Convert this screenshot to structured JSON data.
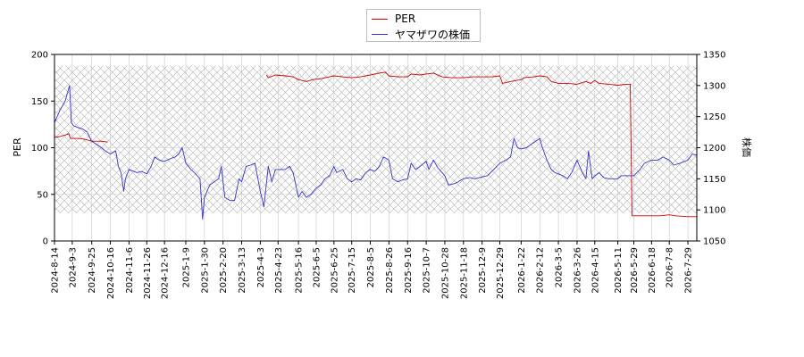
{
  "chart_data": {
    "type": "line",
    "title": "",
    "xlabel": "",
    "y_left_label": "PER",
    "y_right_label": "株価",
    "y_left_range": [
      0,
      200
    ],
    "y_right_range": [
      1050,
      1350
    ],
    "y_left_ticks": [
      0,
      50,
      100,
      150,
      200
    ],
    "y_right_ticks": [
      1050,
      1100,
      1150,
      1200,
      1250,
      1300,
      1350
    ],
    "x_range": [
      "2024-08-14",
      "2026-08-08"
    ],
    "x_ticks": [
      "2024-8-14",
      "2024-9-3",
      "2024-9-25",
      "2024-10-16",
      "2024-11-6",
      "2024-11-26",
      "2024-12-16",
      "2025-1-9",
      "2025-1-30",
      "2025-2-20",
      "2025-3-13",
      "2025-4-3",
      "2025-4-23",
      "2025-5-16",
      "2025-6-5",
      "2025-6-25",
      "2025-7-15",
      "2025-8-5",
      "2025-8-26",
      "2025-9-16",
      "2025-10-7",
      "2025-10-28",
      "2025-11-18",
      "2025-12-9",
      "2025-12-29",
      "2026-1-22",
      "2026-2-12",
      "2026-3-5",
      "2026-3-26",
      "2026-4-15",
      "2026-5-11",
      "2026-5-29",
      "2026-6-18",
      "2026-7-8",
      "2026-7-29"
    ],
    "grid": true,
    "hatched_band_left_axis": [
      30,
      188
    ],
    "legend_placement": "top-center",
    "series": [
      {
        "name": "PER",
        "axis": "left",
        "color": "#cc0000",
        "points": [
          [
            "2024-08-14",
            111
          ],
          [
            "2024-08-20",
            112
          ],
          [
            "2024-08-27",
            114
          ],
          [
            "2024-08-30",
            115
          ],
          [
            "2024-09-01",
            110
          ],
          [
            "2024-09-10",
            110
          ],
          [
            "2024-09-17",
            109
          ],
          [
            "2024-09-25",
            107
          ],
          [
            "2024-10-05",
            107
          ],
          [
            "2024-10-13",
            106
          ],
          null,
          [
            "2025-04-10",
            178
          ],
          [
            "2025-04-12",
            175
          ],
          [
            "2025-04-20",
            178
          ],
          [
            "2025-05-01",
            177
          ],
          [
            "2025-05-10",
            176
          ],
          [
            "2025-05-16",
            173
          ],
          [
            "2025-05-25",
            171
          ],
          [
            "2025-06-01",
            173
          ],
          [
            "2025-06-10",
            174
          ],
          [
            "2025-06-20",
            176
          ],
          [
            "2025-06-25",
            177
          ],
          [
            "2025-07-05",
            176
          ],
          [
            "2025-07-15",
            175
          ],
          [
            "2025-07-25",
            176
          ],
          [
            "2025-08-05",
            178
          ],
          [
            "2025-08-15",
            180
          ],
          [
            "2025-08-22",
            181
          ],
          [
            "2025-08-26",
            177
          ],
          [
            "2025-09-05",
            176
          ],
          [
            "2025-09-16",
            176
          ],
          [
            "2025-09-20",
            179
          ],
          [
            "2025-09-30",
            178
          ],
          [
            "2025-10-07",
            179
          ],
          [
            "2025-10-15",
            180
          ],
          [
            "2025-10-25",
            176
          ],
          [
            "2025-11-05",
            175
          ],
          [
            "2025-11-18",
            175
          ],
          [
            "2025-11-28",
            176
          ],
          [
            "2025-12-09",
            176
          ],
          [
            "2025-12-20",
            176
          ],
          [
            "2025-12-29",
            177
          ],
          [
            "2026-01-01",
            169
          ],
          [
            "2026-01-10",
            171
          ],
          [
            "2026-01-22",
            173
          ],
          [
            "2026-01-25",
            175
          ],
          [
            "2026-02-05",
            176
          ],
          [
            "2026-02-12",
            177
          ],
          [
            "2026-02-20",
            176
          ],
          [
            "2026-02-25",
            171
          ],
          [
            "2026-03-05",
            169
          ],
          [
            "2026-03-15",
            169
          ],
          [
            "2026-03-26",
            168
          ],
          [
            "2026-04-05",
            171
          ],
          [
            "2026-04-10",
            169
          ],
          [
            "2026-04-15",
            172
          ],
          [
            "2026-04-20",
            169
          ],
          [
            "2026-05-01",
            168
          ],
          [
            "2026-05-11",
            167
          ],
          [
            "2026-05-20",
            168
          ],
          [
            "2026-05-25",
            168
          ],
          [
            "2026-05-27",
            27
          ],
          [
            "2026-06-05",
            27
          ],
          [
            "2026-06-18",
            27
          ],
          [
            "2026-06-28",
            27
          ],
          [
            "2026-07-08",
            28
          ],
          [
            "2026-07-15",
            27
          ],
          [
            "2026-07-29",
            26
          ],
          [
            "2026-08-08",
            26
          ]
        ]
      },
      {
        "name": "ヤマザワの株価",
        "axis": "right",
        "color": "#3333cc",
        "points": [
          [
            "2024-08-14",
            1240
          ],
          [
            "2024-08-20",
            1260
          ],
          [
            "2024-08-26",
            1275
          ],
          [
            "2024-08-31",
            1300
          ],
          [
            "2024-09-02",
            1240
          ],
          [
            "2024-09-05",
            1235
          ],
          [
            "2024-09-10",
            1232
          ],
          [
            "2024-09-15",
            1230
          ],
          [
            "2024-09-20",
            1225
          ],
          [
            "2024-09-25",
            1210
          ],
          [
            "2024-10-01",
            1205
          ],
          [
            "2024-10-06",
            1200
          ],
          [
            "2024-10-10",
            1195
          ],
          [
            "2024-10-16",
            1190
          ],
          [
            "2024-10-22",
            1195
          ],
          [
            "2024-10-25",
            1170
          ],
          [
            "2024-10-28",
            1160
          ],
          [
            "2024-10-31",
            1130
          ],
          [
            "2024-11-02",
            1150
          ],
          [
            "2024-11-06",
            1165
          ],
          [
            "2024-11-15",
            1160
          ],
          [
            "2024-11-20",
            1162
          ],
          [
            "2024-11-26",
            1158
          ],
          [
            "2024-12-01",
            1170
          ],
          [
            "2024-12-05",
            1185
          ],
          [
            "2024-12-10",
            1180
          ],
          [
            "2024-12-16",
            1178
          ],
          [
            "2024-12-22",
            1182
          ],
          [
            "2024-12-28",
            1185
          ],
          [
            "2025-01-01",
            1190
          ],
          [
            "2025-01-05",
            1200
          ],
          [
            "2025-01-09",
            1175
          ],
          [
            "2025-01-15",
            1165
          ],
          [
            "2025-01-20",
            1158
          ],
          [
            "2025-01-25",
            1150
          ],
          [
            "2025-01-28",
            1085
          ],
          [
            "2025-01-30",
            1120
          ],
          [
            "2025-02-05",
            1140
          ],
          [
            "2025-02-10",
            1145
          ],
          [
            "2025-02-15",
            1150
          ],
          [
            "2025-02-18",
            1170
          ],
          [
            "2025-02-22",
            1120
          ],
          [
            "2025-02-28",
            1115
          ],
          [
            "2025-03-05",
            1115
          ],
          [
            "2025-03-10",
            1150
          ],
          [
            "2025-03-13",
            1145
          ],
          [
            "2025-03-18",
            1170
          ],
          [
            "2025-03-23",
            1172
          ],
          [
            "2025-03-28",
            1175
          ],
          [
            "2025-04-03",
            1130
          ],
          [
            "2025-04-07",
            1105
          ],
          [
            "2025-04-12",
            1170
          ],
          [
            "2025-04-16",
            1145
          ],
          [
            "2025-04-20",
            1165
          ],
          [
            "2025-04-25",
            1165
          ],
          [
            "2025-05-01",
            1165
          ],
          [
            "2025-05-06",
            1170
          ],
          [
            "2025-05-10",
            1160
          ],
          [
            "2025-05-16",
            1120
          ],
          [
            "2025-05-20",
            1130
          ],
          [
            "2025-05-25",
            1120
          ],
          [
            "2025-05-30",
            1125
          ],
          [
            "2025-06-05",
            1135
          ],
          [
            "2025-06-10",
            1140
          ],
          [
            "2025-06-15",
            1150
          ],
          [
            "2025-06-20",
            1155
          ],
          [
            "2025-06-25",
            1170
          ],
          [
            "2025-06-28",
            1160
          ],
          [
            "2025-07-05",
            1165
          ],
          [
            "2025-07-10",
            1150
          ],
          [
            "2025-07-15",
            1145
          ],
          [
            "2025-07-20",
            1150
          ],
          [
            "2025-07-25",
            1148
          ],
          [
            "2025-07-31",
            1160
          ],
          [
            "2025-08-05",
            1165
          ],
          [
            "2025-08-10",
            1162
          ],
          [
            "2025-08-15",
            1170
          ],
          [
            "2025-08-20",
            1185
          ],
          [
            "2025-08-26",
            1180
          ],
          [
            "2025-08-30",
            1150
          ],
          [
            "2025-09-05",
            1145
          ],
          [
            "2025-09-10",
            1148
          ],
          [
            "2025-09-16",
            1150
          ],
          [
            "2025-09-20",
            1175
          ],
          [
            "2025-09-25",
            1165
          ],
          [
            "2025-09-30",
            1170
          ],
          [
            "2025-10-07",
            1178
          ],
          [
            "2025-10-10",
            1165
          ],
          [
            "2025-10-15",
            1180
          ],
          [
            "2025-10-20",
            1168
          ],
          [
            "2025-10-28",
            1155
          ],
          [
            "2025-11-01",
            1140
          ],
          [
            "2025-11-07",
            1142
          ],
          [
            "2025-11-12",
            1145
          ],
          [
            "2025-11-18",
            1150
          ],
          [
            "2025-11-25",
            1152
          ],
          [
            "2025-12-01",
            1150
          ],
          [
            "2025-12-09",
            1153
          ],
          [
            "2025-12-15",
            1155
          ],
          [
            "2025-12-20",
            1162
          ],
          [
            "2025-12-29",
            1175
          ],
          [
            "2026-01-05",
            1180
          ],
          [
            "2026-01-10",
            1185
          ],
          [
            "2026-01-14",
            1215
          ],
          [
            "2026-01-18",
            1200
          ],
          [
            "2026-01-22",
            1198
          ],
          [
            "2026-01-28",
            1200
          ],
          [
            "2026-02-02",
            1205
          ],
          [
            "2026-02-07",
            1210
          ],
          [
            "2026-02-12",
            1215
          ],
          [
            "2026-02-15",
            1200
          ],
          [
            "2026-02-20",
            1180
          ],
          [
            "2026-02-25",
            1165
          ],
          [
            "2026-03-01",
            1160
          ],
          [
            "2026-03-05",
            1158
          ],
          [
            "2026-03-10",
            1155
          ],
          [
            "2026-03-15",
            1150
          ],
          [
            "2026-03-20",
            1160
          ],
          [
            "2026-03-26",
            1180
          ],
          [
            "2026-04-01",
            1160
          ],
          [
            "2026-04-05",
            1150
          ],
          [
            "2026-04-08",
            1195
          ],
          [
            "2026-04-12",
            1150
          ],
          [
            "2026-04-15",
            1155
          ],
          [
            "2026-04-20",
            1160
          ],
          [
            "2026-04-25",
            1152
          ],
          [
            "2026-05-01",
            1150
          ],
          [
            "2026-05-11",
            1150
          ],
          [
            "2026-05-15",
            1155
          ],
          [
            "2026-05-20",
            1155
          ],
          [
            "2026-05-29",
            1155
          ],
          [
            "2026-06-05",
            1165
          ],
          [
            "2026-06-10",
            1175
          ],
          [
            "2026-06-18",
            1180
          ],
          [
            "2026-06-25",
            1180
          ],
          [
            "2026-07-01",
            1185
          ],
          [
            "2026-07-08",
            1180
          ],
          [
            "2026-07-13",
            1172
          ],
          [
            "2026-07-20",
            1175
          ],
          [
            "2026-07-29",
            1180
          ],
          [
            "2026-08-03",
            1190
          ],
          [
            "2026-08-08",
            1188
          ]
        ]
      }
    ]
  }
}
